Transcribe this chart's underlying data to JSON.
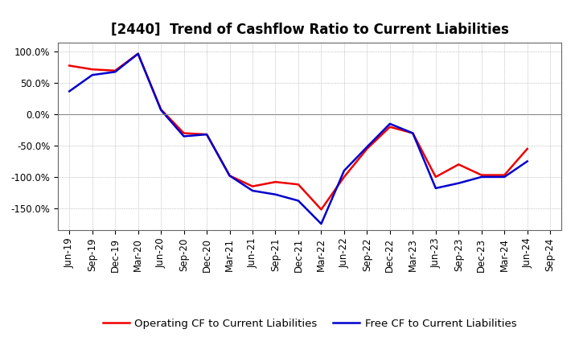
{
  "title": "[2440]  Trend of Cashflow Ratio to Current Liabilities",
  "x_labels": [
    "Jun-19",
    "Sep-19",
    "Dec-19",
    "Mar-20",
    "Jun-20",
    "Sep-20",
    "Dec-20",
    "Mar-21",
    "Jun-21",
    "Sep-21",
    "Dec-21",
    "Mar-22",
    "Jun-22",
    "Sep-22",
    "Dec-22",
    "Mar-23",
    "Jun-23",
    "Sep-23",
    "Dec-23",
    "Mar-24",
    "Jun-24",
    "Sep-24"
  ],
  "operating_cf": [
    78,
    72,
    70,
    97,
    8,
    -30,
    -32,
    -98,
    -115,
    -108,
    -112,
    -152,
    -100,
    -55,
    -20,
    -30,
    -100,
    -80,
    -97,
    -97,
    -55,
    null
  ],
  "free_cf": [
    37,
    63,
    68,
    97,
    7,
    -35,
    -32,
    -98,
    -122,
    -128,
    -138,
    -175,
    -90,
    -52,
    -15,
    -30,
    -118,
    -110,
    -100,
    -100,
    -75,
    null
  ],
  "operating_cf_color": "#ee0000",
  "free_cf_color": "#0000cc",
  "background_color": "#ffffff",
  "plot_bg_color": "#ffffff",
  "grid_color": "#aaaaaa",
  "ylim": [
    -185,
    115
  ],
  "yticks": [
    -150,
    -100,
    -50,
    0,
    50,
    100
  ],
  "legend_op": "Operating CF to Current Liabilities",
  "legend_free": "Free CF to Current Liabilities",
  "title_fontsize": 12,
  "axis_fontsize": 8.5,
  "legend_fontsize": 9.5,
  "line_width": 1.8
}
